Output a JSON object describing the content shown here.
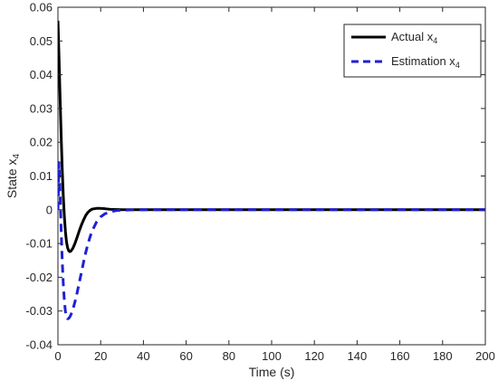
{
  "chart_data": {
    "type": "line",
    "xlabel": "Time (s)",
    "ylabel": {
      "base": "State x",
      "sub": "4"
    },
    "xlim": [
      0,
      200
    ],
    "ylim": [
      -0.04,
      0.06
    ],
    "xticks": [
      0,
      20,
      40,
      60,
      80,
      100,
      120,
      140,
      160,
      180,
      200
    ],
    "yticks": [
      -0.04,
      -0.03,
      -0.02,
      -0.01,
      0,
      0.01,
      0.02,
      0.03,
      0.04,
      0.05,
      0.06
    ],
    "xtick_labels": [
      "0",
      "20",
      "40",
      "60",
      "80",
      "100",
      "120",
      "140",
      "160",
      "180",
      "200"
    ],
    "ytick_labels": [
      "-0.04",
      "-0.03",
      "-0.02",
      "-0.01",
      "0",
      "0.01",
      "0.02",
      "0.03",
      "0.04",
      "0.05",
      "0.06"
    ],
    "grid": false,
    "legend_position": "top-right",
    "series": [
      {
        "name": {
          "base": "Actual x",
          "sub": "4"
        },
        "color": "#000000",
        "style": "solid",
        "x": [
          0,
          0.5,
          1,
          1.5,
          2,
          2.5,
          3,
          3.5,
          4,
          4.5,
          5,
          5.5,
          6,
          7,
          8,
          9,
          10,
          11,
          12,
          13,
          14,
          15,
          16,
          18,
          20,
          22,
          25,
          30,
          40,
          60,
          100,
          150,
          200
        ],
        "y": [
          0.056,
          0.045,
          0.033,
          0.022,
          0.012,
          0.004,
          -0.002,
          -0.0065,
          -0.0095,
          -0.0112,
          -0.0121,
          -0.0124,
          -0.0123,
          -0.0114,
          -0.0099,
          -0.0081,
          -0.0062,
          -0.0045,
          -0.003,
          -0.0017,
          -0.0008,
          -0.0002,
          0.0002,
          0.0004,
          0.0004,
          0.0003,
          0.0001,
          0,
          0,
          0,
          0,
          0,
          0
        ]
      },
      {
        "name": {
          "base": "Estimation x",
          "sub": "4"
        },
        "color": "#1f1fd6",
        "style": "dashed",
        "x": [
          0,
          0.5,
          1,
          1.5,
          2,
          2.5,
          3,
          3.5,
          4,
          4.5,
          5,
          5.5,
          6,
          7,
          8,
          9,
          10,
          11,
          12,
          13,
          14,
          15,
          16,
          18,
          20,
          22,
          25,
          28,
          32,
          36,
          40,
          60,
          100,
          150,
          200
        ],
        "y": [
          0,
          0.014,
          0.005,
          -0.006,
          -0.015,
          -0.022,
          -0.027,
          -0.0302,
          -0.0318,
          -0.0323,
          -0.0322,
          -0.0318,
          -0.0312,
          -0.0295,
          -0.0272,
          -0.0245,
          -0.0215,
          -0.0185,
          -0.0155,
          -0.0127,
          -0.0102,
          -0.0081,
          -0.0063,
          -0.0037,
          -0.0021,
          -0.0012,
          -0.0005,
          -0.0002,
          -0.0001,
          0,
          0,
          0,
          0,
          0,
          0
        ]
      }
    ]
  }
}
